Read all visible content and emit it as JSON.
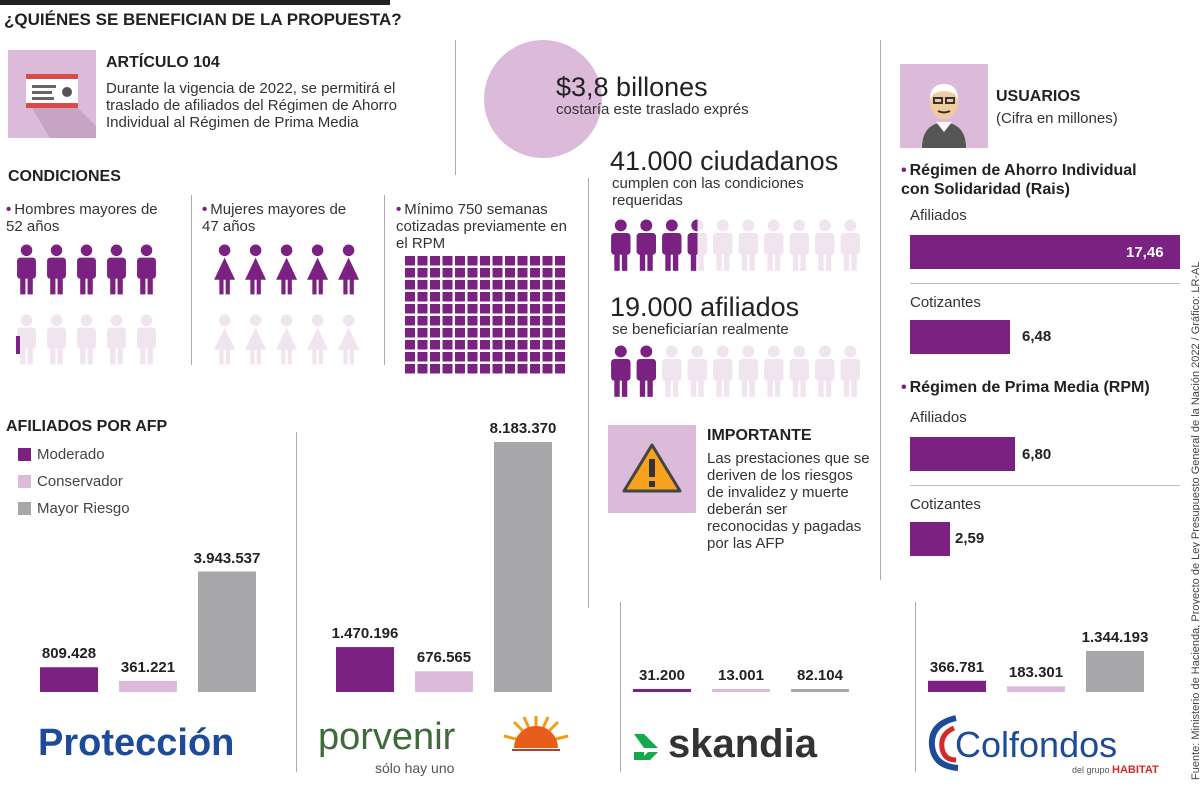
{
  "title": "¿QUIÉNES SE BENEFICIAN DE LA PROPUESTA?",
  "article": {
    "heading": "ARTÍCULO 104",
    "text": "Durante la vigencia de 2022, se permitirá el traslado de afiliados del Régimen de Ahorro Individual al Régimen de Prima Media",
    "icon": "certificate-icon"
  },
  "cost": {
    "amount": "$3,8 billones",
    "label": "costaría este traslado exprés"
  },
  "conditions": {
    "heading": "CONDICIONES",
    "items": [
      {
        "text": "Hombres mayores de 52 años",
        "icon": "male-person-icon"
      },
      {
        "text": "Mujeres mayores de 47 años",
        "icon": "female-person-icon"
      },
      {
        "text": "Mínimo 750 semanas cotizadas previamente en el RPM",
        "icon": "square-grid-icon"
      }
    ]
  },
  "citizens": {
    "number": "41.000 ciudadanos",
    "label": "cumplen con las condiciones requeridas",
    "filled": 3.5,
    "total": 10
  },
  "affiliates": {
    "number": "19.000 afiliados",
    "label": "se beneficiarían realmente",
    "filled": 2,
    "total": 10
  },
  "important": {
    "heading": "IMPORTANTE",
    "text": "Las prestaciones que se deriven de los riesgos de invalidez y muerte deberán ser reconocidas y pagadas por las AFP",
    "icon": "warning-icon"
  },
  "users": {
    "heading": "USUARIOS",
    "sub": "(Cifra en millones)",
    "icon": "user-avatar-icon",
    "rais_title": "Régimen de Ahorro Individual con Solidaridad (Rais)",
    "rpm_title": "Régimen de Prima Media (RPM)",
    "afiliados_label": "Afiliados",
    "cotizantes_label": "Cotizantes",
    "values": {
      "rais_afiliados": "17,46",
      "rais_cotizantes": "6,48",
      "rpm_afiliados": "6,80",
      "rpm_cotizantes": "2,59"
    }
  },
  "afp": {
    "heading": "AFILIADOS POR AFP",
    "legend": [
      "Moderado",
      "Conservador",
      "Mayor Riesgo"
    ],
    "colors": {
      "moderado": "#7a2182",
      "conservador": "#dcbad9",
      "mayor": "#a7a6a8"
    },
    "logos": {
      "proteccion": "Protección",
      "porvenir": "porvenir",
      "porvenir_tag": "sólo hay uno",
      "skandia": "skandia",
      "colfondos": "Colfondos",
      "colfondos_tag": "del grupo",
      "colfondos_tag2": "HABITAT"
    }
  },
  "source": "Fuente: Ministerio de Hacienda, Proyecto de Ley Presupuesto General de la Nación 2022 / Gráfico: LR-AL",
  "chart_data": [
    {
      "type": "bar",
      "title": "",
      "categories": [
        "Protección",
        "Porvenir",
        "Skandia",
        "Colfondos"
      ],
      "series": [
        {
          "name": "Moderado",
          "values": [
            809428,
            1470196,
            31200,
            366781
          ],
          "labels": [
            "809.428",
            "1.470.196",
            "31.200",
            "366.781"
          ]
        },
        {
          "name": "Conservador",
          "values": [
            361221,
            676565,
            13001,
            183301
          ],
          "labels": [
            "361.221",
            "676.565",
            "13.001",
            "183.301"
          ]
        },
        {
          "name": "Mayor Riesgo",
          "values": [
            3943537,
            8183370,
            82104,
            1344193
          ],
          "labels": [
            "3.943.537",
            "8.183.370",
            "82.104",
            "1.344.193"
          ]
        }
      ],
      "ylim": [
        0,
        8183370
      ]
    },
    {
      "type": "bar",
      "title": "",
      "categories": [
        "Afiliados",
        "Cotizantes",
        "Afiliados",
        "Cotizantes"
      ],
      "values": [
        17.46,
        6.48,
        6.8,
        2.59
      ],
      "xlim": [
        0,
        17.46
      ]
    }
  ]
}
